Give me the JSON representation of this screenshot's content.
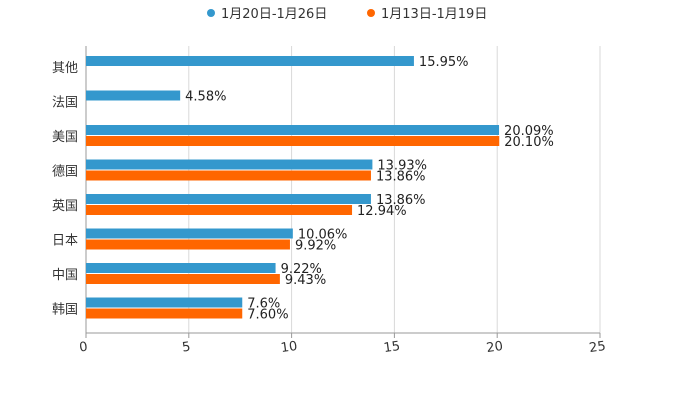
{
  "chart_data": {
    "type": "bar",
    "orientation": "horizontal",
    "categories": [
      "其他",
      "法国",
      "美国",
      "德国",
      "英国",
      "日本",
      "中国",
      "韩国"
    ],
    "series": [
      {
        "name": "1月20日-1月26日",
        "color": "#3498cd",
        "values": [
          15.95,
          4.58,
          20.09,
          13.93,
          13.86,
          10.06,
          9.22,
          7.6
        ],
        "labels": [
          "15.95%",
          "4.58%",
          "20.09%",
          "13.93%",
          "13.86%",
          "10.06%",
          "9.22%",
          "7.6%"
        ]
      },
      {
        "name": "1月13日-1月19日",
        "color": "#ff6600",
        "values": [
          null,
          null,
          20.1,
          13.86,
          12.94,
          9.92,
          9.43,
          7.6
        ],
        "labels": [
          "",
          "",
          "20.10%",
          "13.86%",
          "12.94%",
          "9.92%",
          "9.43%",
          "7.60%"
        ]
      }
    ],
    "xlim": [
      0,
      25
    ],
    "xticks": [
      "0",
      "5",
      "10",
      "15",
      "20",
      "25"
    ],
    "grid": true,
    "legend_position": "top-center",
    "title": "",
    "xlabel": "",
    "ylabel": ""
  }
}
